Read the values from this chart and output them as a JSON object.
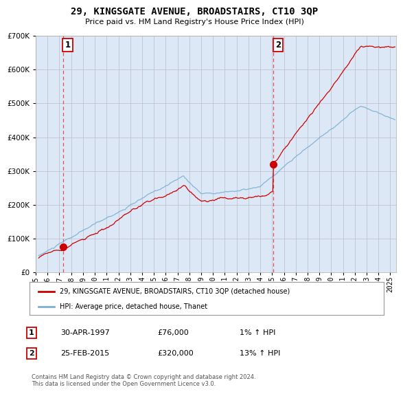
{
  "title": "29, KINGSGATE AVENUE, BROADSTAIRS, CT10 3QP",
  "subtitle": "Price paid vs. HM Land Registry's House Price Index (HPI)",
  "legend_line1": "29, KINGSGATE AVENUE, BROADSTAIRS, CT10 3QP (detached house)",
  "legend_line2": "HPI: Average price, detached house, Thanet",
  "transaction1_label": "1",
  "transaction1_date": "30-APR-1997",
  "transaction1_price": "£76,000",
  "transaction1_hpi": "1% ↑ HPI",
  "transaction2_label": "2",
  "transaction2_date": "25-FEB-2015",
  "transaction2_price": "£320,000",
  "transaction2_hpi": "13% ↑ HPI",
  "copyright": "Contains HM Land Registry data © Crown copyright and database right 2024.\nThis data is licensed under the Open Government Licence v3.0.",
  "red_line_color": "#cc0000",
  "blue_line_color": "#7ab0d4",
  "background_color": "#dce8f5",
  "fig_bg_color": "#ffffff",
  "dashed_line_color": "#e05050",
  "ylim": [
    0,
    700000
  ],
  "xlim_start": 1995.25,
  "xlim_end": 2025.5,
  "transaction1_x": 1997.33,
  "transaction1_y": 76000,
  "transaction2_x": 2015.12,
  "transaction2_y": 320000
}
